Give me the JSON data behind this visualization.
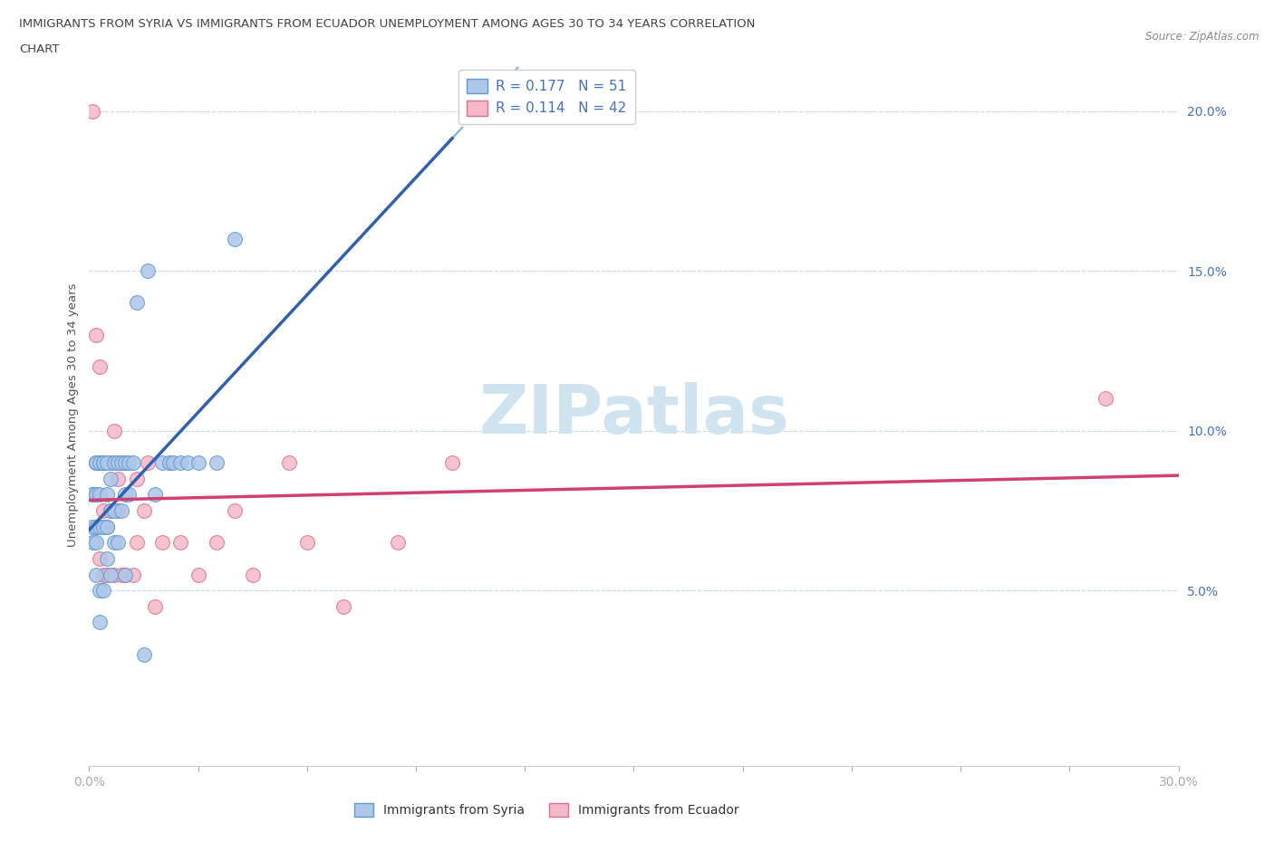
{
  "title_line1": "IMMIGRANTS FROM SYRIA VS IMMIGRANTS FROM ECUADOR UNEMPLOYMENT AMONG AGES 30 TO 34 YEARS CORRELATION",
  "title_line2": "CHART",
  "source": "Source: ZipAtlas.com",
  "ylabel": "Unemployment Among Ages 30 to 34 years",
  "xlim": [
    0.0,
    0.3
  ],
  "ylim": [
    -0.005,
    0.215
  ],
  "xtick_positions": [
    0.0,
    0.03,
    0.06,
    0.09,
    0.12,
    0.15,
    0.18,
    0.21,
    0.24,
    0.27,
    0.3
  ],
  "xticklabels_show": {
    "0.0": "0.0%",
    "0.30": "30.0%"
  },
  "ytick_positions": [
    0.05,
    0.1,
    0.15,
    0.2
  ],
  "ytick_labels": [
    "5.0%",
    "10.0%",
    "15.0%",
    "20.0%"
  ],
  "syria_color": "#aec6e8",
  "syria_edge": "#5b9bd5",
  "ecuador_color": "#f4b8c8",
  "ecuador_edge": "#e07090",
  "syria_line_color": "#3060b0",
  "ecuador_line_color": "#d04070",
  "syria_dash_color": "#90b8e0",
  "R_syria": 0.177,
  "N_syria": 51,
  "R_ecuador": 0.114,
  "N_ecuador": 42,
  "legend_label_syria": "Immigrants from Syria",
  "legend_label_ecuador": "Immigrants from Ecuador",
  "watermark": "ZIPatlas",
  "watermark_color": "#d0e4f0",
  "syria_x": [
    0.001,
    0.001,
    0.001,
    0.001,
    0.002,
    0.002,
    0.002,
    0.002,
    0.002,
    0.002,
    0.003,
    0.003,
    0.003,
    0.003,
    0.003,
    0.004,
    0.004,
    0.004,
    0.004,
    0.005,
    0.005,
    0.005,
    0.005,
    0.006,
    0.006,
    0.006,
    0.007,
    0.007,
    0.007,
    0.008,
    0.008,
    0.009,
    0.009,
    0.01,
    0.01,
    0.01,
    0.011,
    0.011,
    0.012,
    0.013,
    0.015,
    0.016,
    0.018,
    0.02,
    0.022,
    0.023,
    0.025,
    0.027,
    0.03,
    0.035,
    0.04
  ],
  "syria_y": [
    0.07,
    0.08,
    0.08,
    0.065,
    0.055,
    0.065,
    0.07,
    0.08,
    0.09,
    0.09,
    0.04,
    0.05,
    0.07,
    0.08,
    0.09,
    0.05,
    0.07,
    0.09,
    0.09,
    0.06,
    0.07,
    0.08,
    0.09,
    0.055,
    0.075,
    0.085,
    0.065,
    0.075,
    0.09,
    0.065,
    0.09,
    0.075,
    0.09,
    0.055,
    0.08,
    0.09,
    0.08,
    0.09,
    0.09,
    0.14,
    0.03,
    0.15,
    0.08,
    0.09,
    0.09,
    0.09,
    0.09,
    0.09,
    0.09,
    0.09,
    0.16
  ],
  "ecuador_x": [
    0.001,
    0.002,
    0.002,
    0.002,
    0.003,
    0.003,
    0.003,
    0.004,
    0.004,
    0.004,
    0.005,
    0.005,
    0.006,
    0.006,
    0.007,
    0.007,
    0.007,
    0.008,
    0.008,
    0.009,
    0.009,
    0.01,
    0.01,
    0.012,
    0.013,
    0.013,
    0.015,
    0.016,
    0.018,
    0.02,
    0.022,
    0.025,
    0.03,
    0.035,
    0.04,
    0.045,
    0.055,
    0.06,
    0.07,
    0.085,
    0.1,
    0.28
  ],
  "ecuador_y": [
    0.2,
    0.07,
    0.09,
    0.13,
    0.06,
    0.09,
    0.12,
    0.055,
    0.075,
    0.09,
    0.055,
    0.07,
    0.075,
    0.09,
    0.055,
    0.09,
    0.1,
    0.075,
    0.085,
    0.055,
    0.09,
    0.055,
    0.09,
    0.055,
    0.065,
    0.085,
    0.075,
    0.09,
    0.045,
    0.065,
    0.09,
    0.065,
    0.055,
    0.065,
    0.075,
    0.055,
    0.09,
    0.065,
    0.045,
    0.065,
    0.09,
    0.11
  ]
}
